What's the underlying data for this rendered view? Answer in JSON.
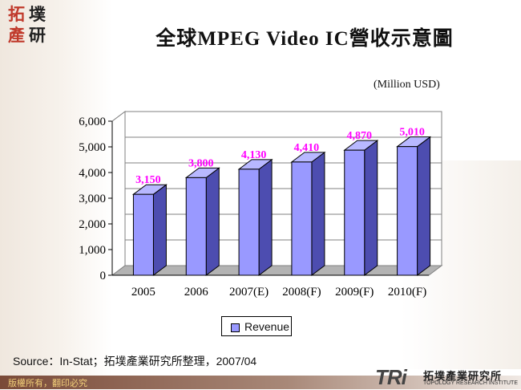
{
  "slide": {
    "title": "全球MPEG Video IC營收示意圖",
    "unit_label": "(Million USD)",
    "source": "Source：In-Stat；拓墣產業研究所整理，2007/04",
    "copyright": "版權所有，翻印必究",
    "logo_chars": [
      "拓",
      "墣",
      "產",
      "研"
    ],
    "tri_logo": {
      "mark": "TRi",
      "name_cn": "拓墣產業研究所",
      "name_en": "TOPOLOGY RESEARCH INSTITUTE"
    }
  },
  "chart_data": {
    "type": "bar",
    "categories": [
      "2005",
      "2006",
      "2007(E)",
      "2008(F)",
      "2009(F)",
      "2010(F)"
    ],
    "series": [
      {
        "name": "Revenue",
        "values": [
          3150,
          3800,
          4130,
          4410,
          4870,
          5010
        ]
      }
    ],
    "data_labels": [
      "3,150",
      "3,800",
      "4,130",
      "4,410",
      "4,870",
      "5,010"
    ],
    "y_ticks": [
      "0",
      "1,000",
      "2,000",
      "3,000",
      "4,000",
      "5,000",
      "6,000"
    ],
    "ylim": [
      0,
      6000
    ],
    "grid": true,
    "legend_position": "bottom",
    "colors": {
      "bar_front": "#9999ff",
      "bar_side": "#4d4db0",
      "bar_top": "#b8b8ff",
      "data_label": "#ff00ff",
      "floor": "#b3b3b3"
    }
  }
}
